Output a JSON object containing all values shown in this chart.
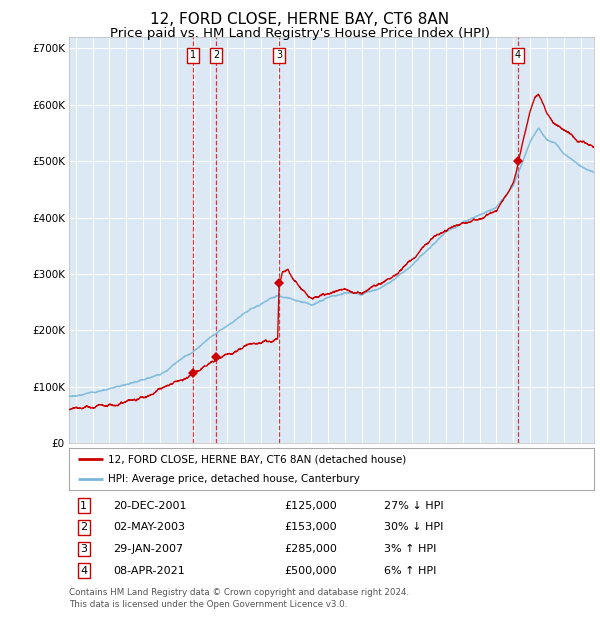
{
  "title": "12, FORD CLOSE, HERNE BAY, CT6 8AN",
  "subtitle": "Price paid vs. HM Land Registry's House Price Index (HPI)",
  "ylim": [
    0,
    720000
  ],
  "yticks": [
    0,
    100000,
    200000,
    300000,
    400000,
    500000,
    600000,
    700000
  ],
  "ytick_labels": [
    "£0",
    "£100K",
    "£200K",
    "£300K",
    "£400K",
    "£500K",
    "£600K",
    "£700K"
  ],
  "xlim_start": 1994.6,
  "xlim_end": 2025.8,
  "plot_bg_color": "#dce9f5",
  "grid_color": "#ffffff",
  "hpi_color": "#7ab8d9",
  "price_color": "#cc0000",
  "transactions": [
    {
      "num": 1,
      "date_label": "20-DEC-2001",
      "x": 2001.97,
      "price": 125000,
      "hpi_note": "27% ↓ HPI"
    },
    {
      "num": 2,
      "date_label": "02-MAY-2003",
      "x": 2003.33,
      "price": 153000,
      "hpi_note": "30% ↓ HPI"
    },
    {
      "num": 3,
      "date_label": "29-JAN-2007",
      "x": 2007.08,
      "price": 285000,
      "hpi_note": "3% ↑ HPI"
    },
    {
      "num": 4,
      "date_label": "08-APR-2021",
      "x": 2021.27,
      "price": 500000,
      "hpi_note": "6% ↑ HPI"
    }
  ],
  "legend_price_label": "12, FORD CLOSE, HERNE BAY, CT6 8AN (detached house)",
  "legend_hpi_label": "HPI: Average price, detached house, Canterbury",
  "footer": "Contains HM Land Registry data © Crown copyright and database right 2024.\nThis data is licensed under the Open Government Licence v3.0.",
  "title_fontsize": 11,
  "subtitle_fontsize": 9.5,
  "tick_fontsize": 7.5,
  "hpi_anchors_x": [
    1994.6,
    1996,
    1998,
    2000,
    2001,
    2002,
    2003,
    2004,
    2005,
    2006,
    2007,
    2008,
    2009,
    2010,
    2011,
    2012,
    2013,
    2014,
    2015,
    2016,
    2017,
    2018,
    2019,
    2020,
    2021,
    2021.5,
    2022,
    2022.5,
    2023,
    2023.5,
    2024,
    2025,
    2025.8
  ],
  "hpi_anchors_y": [
    83000,
    90000,
    105000,
    128000,
    148000,
    168000,
    195000,
    215000,
    232000,
    250000,
    265000,
    255000,
    248000,
    258000,
    268000,
    265000,
    278000,
    298000,
    323000,
    355000,
    382000,
    398000,
    410000,
    420000,
    455000,
    490000,
    530000,
    555000,
    535000,
    530000,
    510000,
    490000,
    480000
  ],
  "price_anchors_x": [
    1994.6,
    1996,
    1998,
    2000,
    2001.5,
    2001.97,
    2002.5,
    2003.0,
    2003.33,
    2004,
    2005,
    2006,
    2007.0,
    2007.08,
    2007.3,
    2007.6,
    2008,
    2009,
    2010,
    2011,
    2012,
    2013,
    2014,
    2015,
    2016,
    2017,
    2018,
    2019,
    2020,
    2021.0,
    2021.27,
    2021.6,
    2022.0,
    2022.3,
    2022.5,
    2022.8,
    2023,
    2023.5,
    2024,
    2024.5,
    2025,
    2025.8
  ],
  "price_anchors_y": [
    60000,
    67000,
    80000,
    100000,
    118000,
    125000,
    135000,
    145000,
    153000,
    162000,
    170000,
    178000,
    192000,
    285000,
    315000,
    320000,
    300000,
    265000,
    272000,
    280000,
    278000,
    290000,
    310000,
    335000,
    362000,
    385000,
    400000,
    410000,
    422000,
    468000,
    500000,
    545000,
    595000,
    620000,
    625000,
    608000,
    590000,
    570000,
    558000,
    545000,
    535000,
    525000
  ]
}
